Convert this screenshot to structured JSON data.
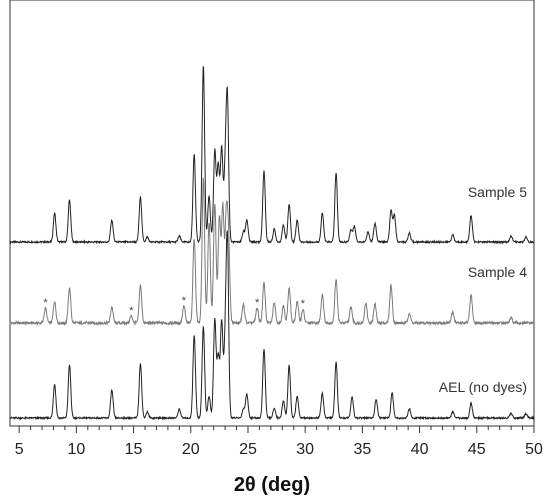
{
  "chart_data": {
    "type": "line",
    "title": "",
    "xlabel": "2θ (deg)",
    "ylabel": "",
    "xlim": [
      4.2,
      50
    ],
    "x_ticks": [
      5,
      10,
      15,
      20,
      25,
      30,
      35,
      40,
      45,
      50
    ],
    "grid": false,
    "legend": "none",
    "series": [
      {
        "name": "Sample 5",
        "color": "#222222",
        "baseline": 2,
        "peaks": [
          [
            8.1,
            0.29
          ],
          [
            9.4,
            0.42
          ],
          [
            13.1,
            0.22
          ],
          [
            15.6,
            0.45
          ],
          [
            16.2,
            0.05
          ],
          [
            19.0,
            0.06
          ],
          [
            20.3,
            0.88
          ],
          [
            21.1,
            1.77
          ],
          [
            21.6,
            0.46
          ],
          [
            22.1,
            0.91
          ],
          [
            22.4,
            0.76
          ],
          [
            22.7,
            0.93
          ],
          [
            23.0,
            0.64
          ],
          [
            23.2,
            1.4
          ],
          [
            24.6,
            0.1
          ],
          [
            24.9,
            0.22
          ],
          [
            26.4,
            0.71
          ],
          [
            27.3,
            0.13
          ],
          [
            28.1,
            0.17
          ],
          [
            28.6,
            0.38
          ],
          [
            29.3,
            0.22
          ],
          [
            31.5,
            0.29
          ],
          [
            32.7,
            0.69
          ],
          [
            34.0,
            0.12
          ],
          [
            34.3,
            0.16
          ],
          [
            35.5,
            0.1
          ],
          [
            36.1,
            0.19
          ],
          [
            37.5,
            0.31
          ],
          [
            37.8,
            0.27
          ],
          [
            39.1,
            0.09
          ],
          [
            42.9,
            0.07
          ],
          [
            44.5,
            0.27
          ],
          [
            48.0,
            0.06
          ],
          [
            49.3,
            0.05
          ]
        ]
      },
      {
        "name": "Sample 4",
        "color": "#7a7a7a",
        "baseline": 1,
        "peaks": [
          [
            7.3,
            0.15
          ],
          [
            8.1,
            0.22
          ],
          [
            9.4,
            0.35
          ],
          [
            13.1,
            0.16
          ],
          [
            14.8,
            0.07
          ],
          [
            15.6,
            0.38
          ],
          [
            19.4,
            0.17
          ],
          [
            20.3,
            0.85
          ],
          [
            21.1,
            1.45
          ],
          [
            21.6,
            1.0
          ],
          [
            22.1,
            1.2
          ],
          [
            22.5,
            1.05
          ],
          [
            22.8,
            1.15
          ],
          [
            23.1,
            1.0
          ],
          [
            23.3,
            0.8
          ],
          [
            24.6,
            0.18
          ],
          [
            25.8,
            0.15
          ],
          [
            26.4,
            0.4
          ],
          [
            27.3,
            0.21
          ],
          [
            28.1,
            0.17
          ],
          [
            28.6,
            0.35
          ],
          [
            29.3,
            0.22
          ],
          [
            29.8,
            0.14
          ],
          [
            31.5,
            0.29
          ],
          [
            32.7,
            0.44
          ],
          [
            34.0,
            0.16
          ],
          [
            35.3,
            0.2
          ],
          [
            36.1,
            0.19
          ],
          [
            37.5,
            0.38
          ],
          [
            39.1,
            0.1
          ],
          [
            42.9,
            0.11
          ],
          [
            44.5,
            0.28
          ],
          [
            48.0,
            0.05
          ]
        ]
      },
      {
        "name": "AEL (no dyes)",
        "color": "#222222",
        "baseline": 0,
        "peaks": [
          [
            8.1,
            0.34
          ],
          [
            9.4,
            0.53
          ],
          [
            13.1,
            0.28
          ],
          [
            15.6,
            0.55
          ],
          [
            16.2,
            0.06
          ],
          [
            19.0,
            0.09
          ],
          [
            20.3,
            0.83
          ],
          [
            21.1,
            0.92
          ],
          [
            21.6,
            0.22
          ],
          [
            22.1,
            0.98
          ],
          [
            22.4,
            0.61
          ],
          [
            22.7,
            0.96
          ],
          [
            23.0,
            0.65
          ],
          [
            23.2,
            1.74
          ],
          [
            24.6,
            0.09
          ],
          [
            24.9,
            0.24
          ],
          [
            26.4,
            0.69
          ],
          [
            27.3,
            0.1
          ],
          [
            28.1,
            0.17
          ],
          [
            28.6,
            0.53
          ],
          [
            29.3,
            0.22
          ],
          [
            31.5,
            0.25
          ],
          [
            32.7,
            0.56
          ],
          [
            34.1,
            0.21
          ],
          [
            36.2,
            0.19
          ],
          [
            37.6,
            0.25
          ],
          [
            39.1,
            0.09
          ],
          [
            42.9,
            0.06
          ],
          [
            44.5,
            0.15
          ],
          [
            48.0,
            0.05
          ],
          [
            49.3,
            0.04
          ]
        ]
      }
    ],
    "annotations": {
      "marker": "*",
      "series": "Sample 4",
      "x": [
        7.3,
        14.8,
        19.4,
        25.8,
        29.8
      ]
    }
  }
}
